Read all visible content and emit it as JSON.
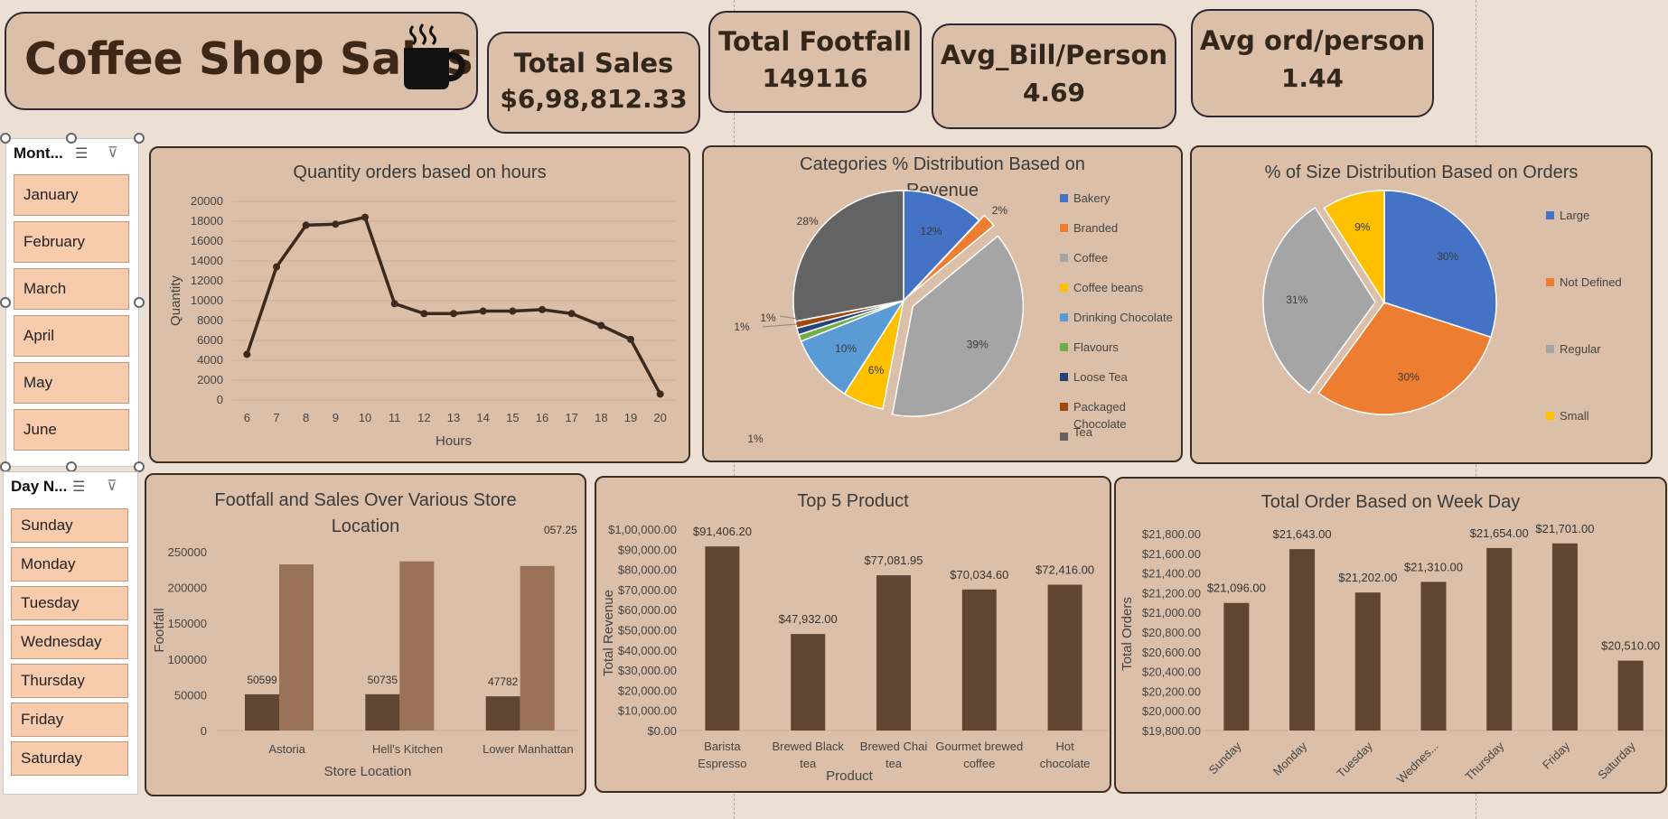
{
  "header": {
    "title": "Coffee Shop Sales",
    "icon": "coffee-cup-icon"
  },
  "kpis": {
    "total_sales_label": "Total Sales",
    "total_sales_value": "$6,98,812.33",
    "footfall_label": "Total Footfall",
    "footfall_value": "149116",
    "avg_bill_label": "Avg_Bill/Person",
    "avg_bill_value": "4.69",
    "avg_ord_label": "Avg ord/person",
    "avg_ord_value": "1.44"
  },
  "slicers": {
    "month": {
      "title": "Mont...",
      "items": [
        "January",
        "February",
        "March",
        "April",
        "May",
        "June"
      ]
    },
    "day": {
      "title": "Day N...",
      "items": [
        "Sunday",
        "Monday",
        "Tuesday",
        "Wednesday",
        "Thursday",
        "Friday",
        "Saturday"
      ]
    }
  },
  "chart_data": [
    {
      "id": "hours",
      "type": "line",
      "title": "Quantity orders based on hours",
      "xlabel": "Hours",
      "ylabel": "Quantity",
      "x": [
        6,
        7,
        8,
        9,
        10,
        11,
        12,
        13,
        14,
        15,
        16,
        17,
        18,
        19,
        20
      ],
      "values": [
        4600,
        13400,
        17600,
        17700,
        18400,
        9700,
        8700,
        8700,
        8950,
        8950,
        9100,
        8700,
        7500,
        6100,
        600
      ],
      "yticks": [
        "0",
        "2000",
        "4000",
        "6000",
        "8000",
        "10000",
        "12000",
        "14000",
        "16000",
        "18000",
        "20000"
      ],
      "ylim": [
        0,
        20000
      ],
      "grid": true,
      "color": "#3b2a1e"
    },
    {
      "id": "categories",
      "type": "pie",
      "title": "Categories % Distribution Based on Revenue",
      "categories": [
        "Bakery",
        "Branded",
        "Coffee",
        "Coffee beans",
        "Drinking Chocolate",
        "Flavours",
        "Loose Tea",
        "Packaged Chocolate",
        "Tea"
      ],
      "values": [
        12,
        2,
        39,
        6,
        10,
        1,
        1,
        1,
        28
      ],
      "labels": [
        "12%",
        "2%",
        "39%",
        "6%",
        "10%",
        "1%",
        "1%",
        "1%",
        "28%"
      ],
      "colors": [
        "#4472c4",
        "#ed7d31",
        "#a5a5a5",
        "#ffc000",
        "#5b9bd5",
        "#70ad47",
        "#264478",
        "#9e480e",
        "#636363"
      ],
      "legend": "right"
    },
    {
      "id": "sizes",
      "type": "pie",
      "title": "% of Size Distribution Based on Orders",
      "categories": [
        "Large",
        "Not Defined",
        "Regular",
        "Small"
      ],
      "values": [
        30,
        30,
        31,
        9
      ],
      "labels": [
        "30%",
        "30%",
        "31%",
        "9%"
      ],
      "colors": [
        "#4472c4",
        "#ed7d31",
        "#a5a5a5",
        "#ffc000"
      ],
      "legend": "right"
    },
    {
      "id": "stores",
      "type": "bar",
      "title": "Footfall and Sales Over Various Store Location",
      "xlabel": "Store Location",
      "ylabel": "Footfall",
      "categories": [
        "Astoria",
        "Hell's Kitchen",
        "Lower Manhattan"
      ],
      "series": [
        {
          "values": [
            50599,
            50735,
            47782
          ],
          "labels": [
            "50599",
            "50735",
            "47782"
          ],
          "color": "#5f4532"
        },
        {
          "values": [
            232244,
            236511,
            230057.25
          ],
          "labels": [
            "057.25"
          ],
          "color": "#9a7257"
        }
      ],
      "yticks": [
        "0",
        "50000",
        "100000",
        "150000",
        "200000",
        "250000"
      ],
      "ylim": [
        0,
        250000
      ]
    },
    {
      "id": "top5",
      "type": "bar",
      "title": "Top 5 Product",
      "xlabel": "Product",
      "ylabel": "Total Revenue",
      "categories": [
        "Barista Espresso",
        "Brewed Black tea",
        "Brewed Chai tea",
        "Gourmet brewed coffee",
        "Hot chocolate"
      ],
      "values": [
        91406.2,
        47932.0,
        77081.95,
        70034.6,
        72416.0
      ],
      "labels": [
        "$91,406.20",
        "$47,932.00",
        "$77,081.95",
        "$70,034.60",
        "$72,416.00"
      ],
      "yticks": [
        "$0.00",
        "$10,000.00",
        "$20,000.00",
        "$30,000.00",
        "$40,000.00",
        "$50,000.00",
        "$60,000.00",
        "$70,000.00",
        "$80,000.00",
        "$90,000.00",
        "$1,00,000.00"
      ],
      "ylim": [
        0,
        100000
      ],
      "color": "#5f4532"
    },
    {
      "id": "weekday",
      "type": "bar",
      "title": "Total Order Based on Week Day",
      "ylabel": "Total Orders",
      "categories": [
        "Sunday",
        "Monday",
        "Tuesday",
        "Wednes...",
        "Thursday",
        "Friday",
        "Saturday"
      ],
      "values": [
        21096,
        21643,
        21202,
        21310,
        21654,
        21701,
        20510
      ],
      "labels": [
        "$21,096.00",
        "$21,643.00",
        "$21,202.00",
        "$21,310.00",
        "$21,654.00",
        "$21,701.00",
        "$20,510.00"
      ],
      "yticks": [
        "$19,800.00",
        "$20,000.00",
        "$20,200.00",
        "$20,400.00",
        "$20,600.00",
        "$20,800.00",
        "$21,000.00",
        "$21,200.00",
        "$21,400.00",
        "$21,600.00",
        "$21,800.00"
      ],
      "ylim": [
        19800,
        21800
      ],
      "color": "#5f4532"
    }
  ]
}
